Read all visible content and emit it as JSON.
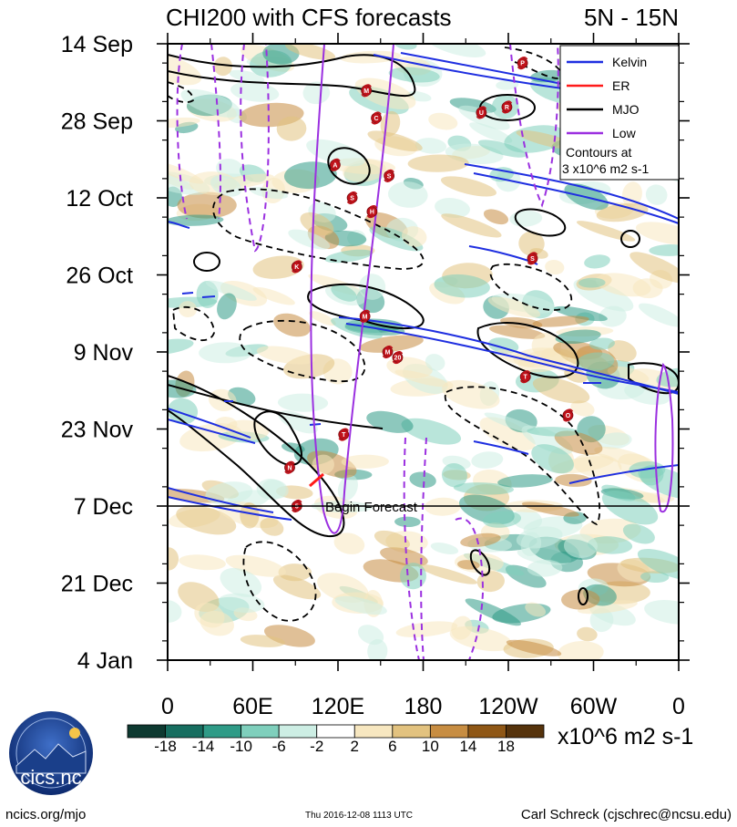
{
  "chart_data": {
    "type": "heatmap",
    "title": "CHI200 with CFS forecasts",
    "region": "5N - 15N",
    "y_tick_labels": [
      "14 Sep",
      "28 Sep",
      "12 Oct",
      "26 Oct",
      "9 Nov",
      "23 Nov",
      "7 Dec",
      "21 Dec",
      "4 Jan"
    ],
    "y_ticks_days": [
      0,
      14,
      28,
      42,
      56,
      70,
      84,
      98,
      112
    ],
    "x_tick_labels": [
      "0",
      "60E",
      "120E",
      "180",
      "120W",
      "60W",
      "0"
    ],
    "x_ticks_lon": [
      0,
      60,
      120,
      180,
      240,
      300,
      360
    ],
    "xlim": [
      0,
      360
    ],
    "ylim_days": [
      0,
      112
    ],
    "forecast_start_day": 84,
    "forecast_label": "Begin Forecast",
    "colorbar": {
      "tick_labels": [
        "-18",
        "-14",
        "-10",
        "-6",
        "-2",
        "2",
        "6",
        "10",
        "14",
        "18"
      ],
      "levels": [
        -18,
        -14,
        -10,
        -6,
        -2,
        2,
        6,
        10,
        14,
        18
      ],
      "colors": [
        "#0e3a31",
        "#176e60",
        "#2f9b87",
        "#7fcfbc",
        "#cdeee4",
        "#ffffff",
        "#f7e7c0",
        "#e2c27f",
        "#c78d42",
        "#8f5716",
        "#56330c"
      ],
      "units": "x10^6 m2 s-1"
    },
    "legend": {
      "placement": "top-right",
      "entries": [
        {
          "name": "Kelvin",
          "color": "#1f2fe0"
        },
        {
          "name": "ER",
          "color": "#ff1a1a"
        },
        {
          "name": "MJO",
          "color": "#000000"
        },
        {
          "name": "Low",
          "color": "#9b30e0"
        }
      ],
      "note_line1": "Contours at",
      "note_line2": "3 x10^6 m2 s-1"
    },
    "storms": [
      {
        "label": "P",
        "lon": 250,
        "day": 3.5
      },
      {
        "label": "M",
        "lon": 140,
        "day": 8.5
      },
      {
        "label": "U",
        "lon": 221,
        "day": 12.5
      },
      {
        "label": "R",
        "lon": 239,
        "day": 11.5
      },
      {
        "label": "C",
        "lon": 147,
        "day": 13.5
      },
      {
        "label": "A",
        "lon": 118,
        "day": 22
      },
      {
        "label": "S",
        "lon": 156,
        "day": 24
      },
      {
        "label": "S",
        "lon": 130,
        "day": 28
      },
      {
        "label": "H",
        "lon": 144,
        "day": 30.5
      },
      {
        "label": "K",
        "lon": 91,
        "day": 40.5
      },
      {
        "label": "S",
        "lon": 257,
        "day": 39
      },
      {
        "label": "M",
        "lon": 139,
        "day": 49.5
      },
      {
        "label": "M",
        "lon": 155,
        "day": 56
      },
      {
        "label": "20",
        "lon": 162,
        "day": 57
      },
      {
        "label": "T",
        "lon": 252,
        "day": 60.5
      },
      {
        "label": "O",
        "lon": 282,
        "day": 67.5
      },
      {
        "label": "T",
        "lon": 124,
        "day": 71
      },
      {
        "label": "N",
        "lon": 86,
        "day": 77
      },
      {
        "label": "5",
        "lon": 91,
        "day": 84
      }
    ]
  },
  "footer": {
    "logo_text": "cics.nc",
    "left": "ncics.org/mjo",
    "timestamp": "Thu 2016-12-08 1113 UTC",
    "right": "Carl Schreck (cjschrec@ncsu.edu)"
  }
}
